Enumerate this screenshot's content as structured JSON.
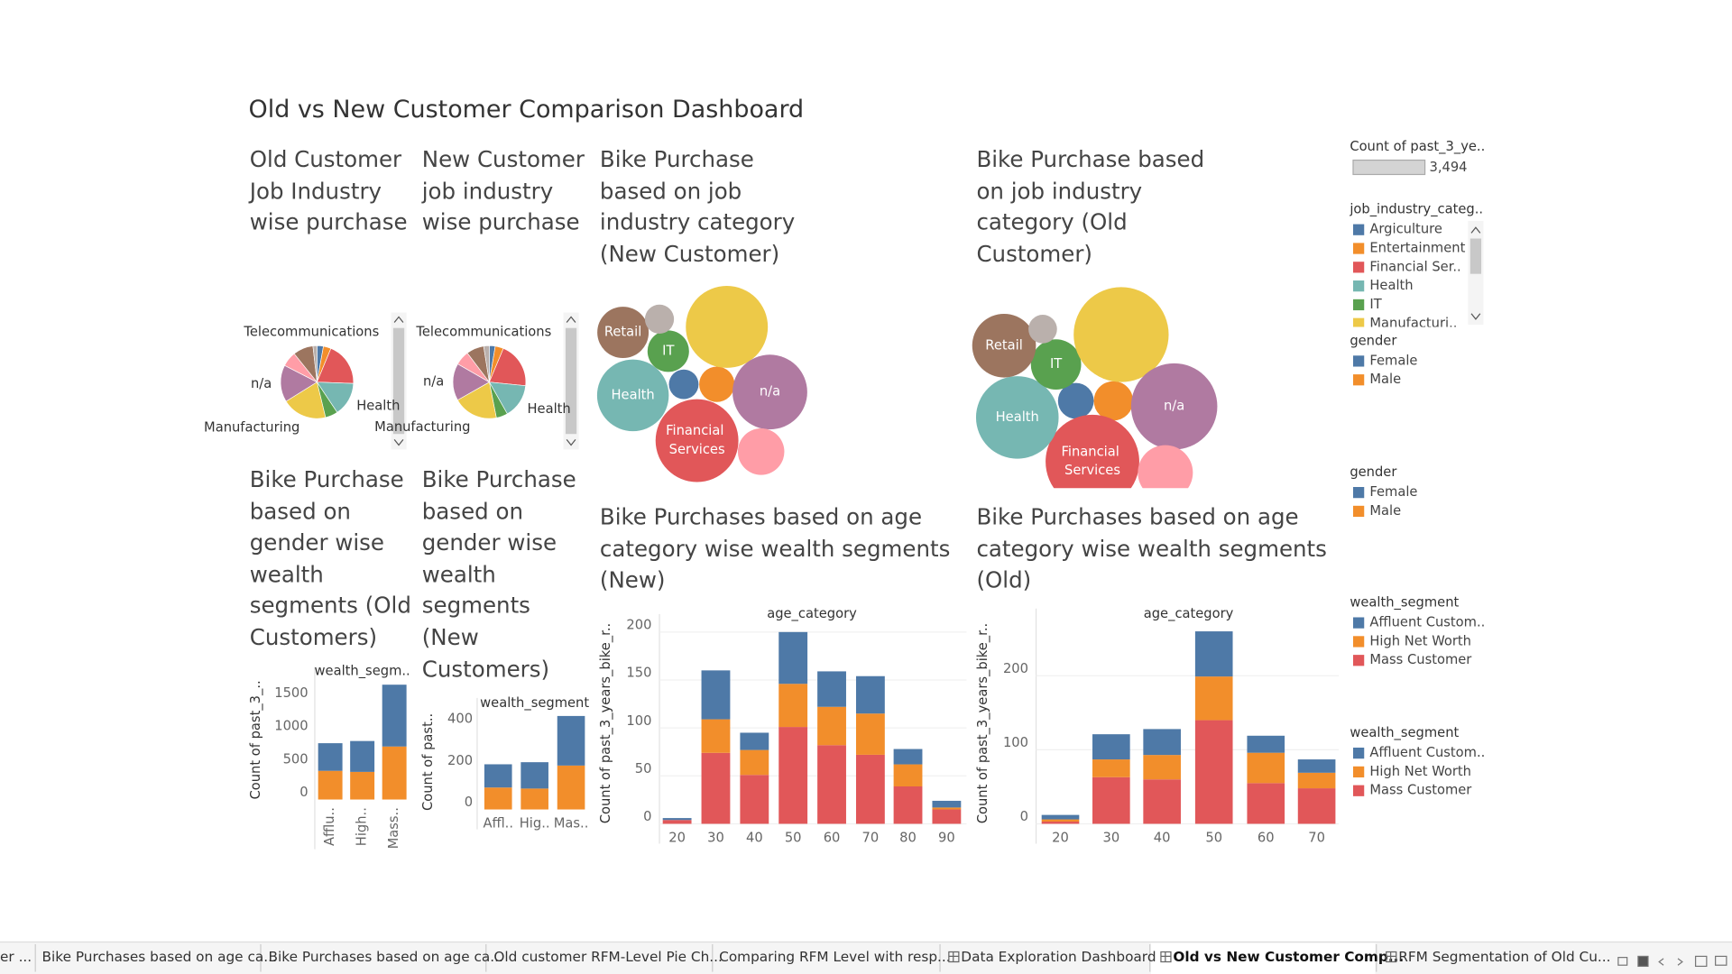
{
  "title": "Old vs New Customer Comparison Dashboard",
  "size_legend": {
    "title": "Count of past_3_ye..",
    "label": "3,494"
  },
  "legends": [
    {
      "title": "job_industry_categ..",
      "items": [
        "Argiculture",
        "Entertainment",
        "Financial Ser..",
        "Health",
        "IT",
        "Manufacturi.."
      ]
    },
    {
      "title": "gender"
    },
    {
      "title": "gender"
    },
    {
      "title": "wealth_segment"
    },
    {
      "title": "wealth_segment"
    }
  ],
  "tabs": [
    "er ...",
    "Bike Purchases based on age ca...",
    "Bike Purchases based on age ca...",
    "Old customer RFM-Level Pie Ch...",
    "Comparing RFM Level with resp...",
    "Data Exploration Dashboard",
    "Old vs New Customer Comp...",
    "RFM Segmentation of Old Cu..."
  ],
  "active_tab": 6,
  "chart_data": [
    {
      "type": "pie",
      "title": "Old Customer Job Industry wise purchase",
      "categories": [
        null,
        null,
        null,
        "Health",
        null,
        "Manufacturing",
        "n/a",
        null,
        null,
        "Telecommunications"
      ],
      "values": [
        113,
        136,
        774,
        602,
        223,
        796,
        656,
        267,
        358,
        72
      ],
      "colors": [
        "#4e79a7",
        "#f28e2b",
        "#e15759",
        "#76b7b2",
        "#59a14f",
        "#edc948",
        "#b07aa1",
        "#ff9da7",
        "#9c755f",
        "#bab0ac"
      ]
    },
    {
      "type": "pie",
      "title": "New Customer job industry wise purchase",
      "categories": [
        null,
        null,
        null,
        "Health",
        null,
        "Manufacturing",
        "n/a",
        null,
        null,
        "Telecommunications"
      ],
      "values": [
        26,
        37,
        203,
        152,
        51,
        199,
        165,
        64,
        78,
        25
      ],
      "colors": [
        "#4e79a7",
        "#f28e2b",
        "#e15759",
        "#76b7b2",
        "#59a14f",
        "#edc948",
        "#b07aa1",
        "#ff9da7",
        "#9c755f",
        "#bab0ac"
      ]
    },
    {
      "type": "bubble",
      "title": "Bike Purchase based on job industry category (New Customer)",
      "categories": [
        null,
        null,
        "Financial Services",
        "Health",
        "IT",
        null,
        "n/a",
        null,
        "Retail",
        null
      ],
      "values": [
        26,
        37,
        203,
        152,
        51,
        199,
        165,
        64,
        78,
        25
      ],
      "colors": [
        "#4e79a7",
        "#f28e2b",
        "#e15759",
        "#76b7b2",
        "#59a14f",
        "#edc948",
        "#b07aa1",
        "#ff9da7",
        "#9c755f",
        "#bab0ac"
      ]
    },
    {
      "type": "bubble",
      "title": "Bike Purchase based on job industry category (Old Customer)",
      "categories": [
        null,
        null,
        "Financial Services",
        "Health",
        "IT",
        null,
        "n/a",
        null,
        "Retail",
        null
      ],
      "values": [
        113,
        136,
        774,
        602,
        223,
        796,
        656,
        267,
        358,
        72
      ],
      "colors": [
        "#4e79a7",
        "#f28e2b",
        "#e15759",
        "#76b7b2",
        "#59a14f",
        "#edc948",
        "#b07aa1",
        "#ff9da7",
        "#9c755f",
        "#bab0ac"
      ]
    },
    {
      "type": "bar",
      "title": "Bike Purchase based on gender wise wealth segments (Old Customers)",
      "x_label": "wealth_segm..",
      "y_label": "Count of past_3_..",
      "categories": [
        "Afflu..",
        "High..",
        "Mass.."
      ],
      "series": [
        {
          "name": "Male",
          "color": "#f28e2b",
          "values": [
            433,
            417,
            800
          ]
        },
        {
          "name": "Female",
          "color": "#4e79a7",
          "values": [
            417,
            466,
            933
          ]
        }
      ],
      "ylim": [
        0,
        1800
      ],
      "yticks": [
        0,
        500,
        1000,
        1500
      ],
      "grid": false
    },
    {
      "type": "bar",
      "title": "Bike Purchase based on gender wise wealth segments (New Customers)",
      "x_label": "wealth_segment",
      "y_label": "Count of past..",
      "categories": [
        "Affl..",
        "Hig..",
        "Mas.."
      ],
      "series": [
        {
          "name": "Male",
          "color": "#f28e2b",
          "values": [
            105,
            100,
            210
          ]
        },
        {
          "name": "Female",
          "color": "#4e79a7",
          "values": [
            111,
            126,
            237
          ]
        }
      ],
      "ylim": [
        0,
        470
      ],
      "yticks": [
        0,
        200,
        400
      ],
      "grid": false
    },
    {
      "type": "bar",
      "title": "Bike Purchases based on age category wise wealth segments (New)",
      "x_label": "age_category",
      "y_label": "Count of past_3_years_bike_r..",
      "categories": [
        "20",
        "30",
        "40",
        "50",
        "60",
        "70",
        "80",
        "90"
      ],
      "series": [
        {
          "name": "Mass Customer",
          "color": "#e15759",
          "values": [
            4,
            74,
            51,
            101,
            82,
            72,
            39,
            15
          ]
        },
        {
          "name": "High Net Worth",
          "color": "#f28e2b",
          "values": [
            0,
            35,
            26,
            45,
            40,
            43,
            23,
            2
          ]
        },
        {
          "name": "Affluent Custom..",
          "color": "#4e79a7",
          "values": [
            2,
            51,
            18,
            54,
            37,
            39,
            16,
            7
          ]
        }
      ],
      "ylim": [
        0,
        205
      ],
      "yticks": [
        0,
        50,
        100,
        150,
        200
      ],
      "grid": true
    },
    {
      "type": "bar",
      "title": "Bike Purchases based on age category wise wealth segments (Old)",
      "x_label": "age_category",
      "y_label": "Count of past_3_years_bike_r..",
      "categories": [
        "20",
        "30",
        "40",
        "50",
        "60",
        "70"
      ],
      "series": [
        {
          "name": "Mass Customer",
          "color": "#e15759",
          "values": [
            3,
            63,
            60,
            140,
            55,
            48
          ]
        },
        {
          "name": "High Net Worth",
          "color": "#f28e2b",
          "values": [
            3,
            24,
            33,
            59,
            41,
            21
          ]
        },
        {
          "name": "Affluent Custom..",
          "color": "#4e79a7",
          "values": [
            6,
            34,
            35,
            61,
            23,
            18
          ]
        }
      ],
      "ylim": [
        0,
        273
      ],
      "yticks": [
        0,
        100,
        200
      ],
      "grid": true
    }
  ]
}
